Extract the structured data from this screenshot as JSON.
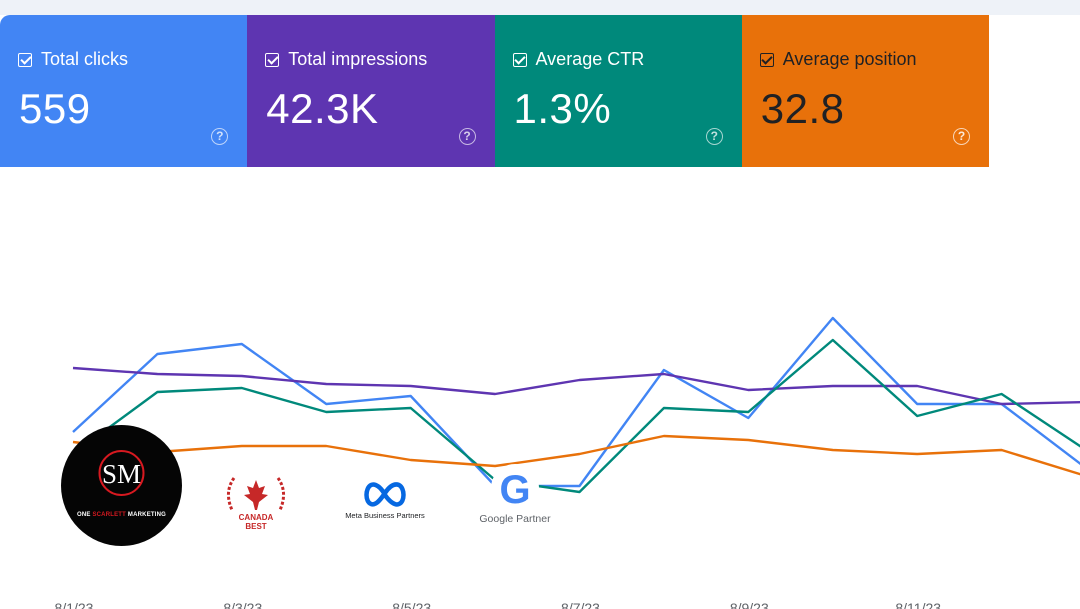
{
  "metrics": [
    {
      "label": "Total clicks",
      "value": "559",
      "color": "#4285f4"
    },
    {
      "label": "Total impressions",
      "value": "42.3K",
      "color": "#5e35b1"
    },
    {
      "label": "Average CTR",
      "value": "1.3%",
      "color": "#00897b"
    },
    {
      "label": "Average position",
      "value": "32.8",
      "color": "#e8710a"
    }
  ],
  "help_glyph": "?",
  "chart_data": {
    "type": "line",
    "x": [
      "8/1/23",
      "8/2/23",
      "8/3/23",
      "8/4/23",
      "8/5/23",
      "8/6/23",
      "8/7/23",
      "8/8/23",
      "8/9/23",
      "8/10/23",
      "8/11/23",
      "8/12/23",
      "8/13/23"
    ],
    "x_tick_labels": [
      "8/1/23",
      "8/3/23",
      "8/5/23",
      "8/7/23",
      "8/9/23",
      "8/11/23"
    ],
    "ylim": [
      0,
      100
    ],
    "y_axis": "none",
    "series": [
      {
        "name": "Total clicks",
        "color": "#4285f4",
        "values": [
          34,
          73,
          78,
          48,
          52,
          7,
          7,
          65,
          41,
          91,
          48,
          48,
          16
        ]
      },
      {
        "name": "Total impressions",
        "color": "#5e35b1",
        "values": [
          66,
          63,
          62,
          58,
          57,
          53,
          60,
          63,
          55,
          57,
          57,
          48,
          49
        ]
      },
      {
        "name": "Average CTR",
        "color": "#00897b",
        "values": [
          23,
          54,
          56,
          44,
          46,
          10,
          4,
          46,
          44,
          80,
          42,
          53,
          25
        ]
      },
      {
        "name": "Average position",
        "color": "#e8710a",
        "values": [
          29,
          24,
          27,
          27,
          20,
          17,
          23,
          32,
          30,
          25,
          23,
          25,
          12
        ]
      }
    ]
  },
  "logos": {
    "sm": {
      "monogram": "SM",
      "caption_part1": "ONE ",
      "caption_red": "SCARLETT",
      "caption_part2": " MARKETING"
    },
    "canada": {
      "line1": "CANADA",
      "line2": "BEST"
    },
    "meta": {
      "caption": "Meta Business Partners"
    },
    "google": {
      "letter": "G",
      "caption": "Google Partner"
    }
  }
}
